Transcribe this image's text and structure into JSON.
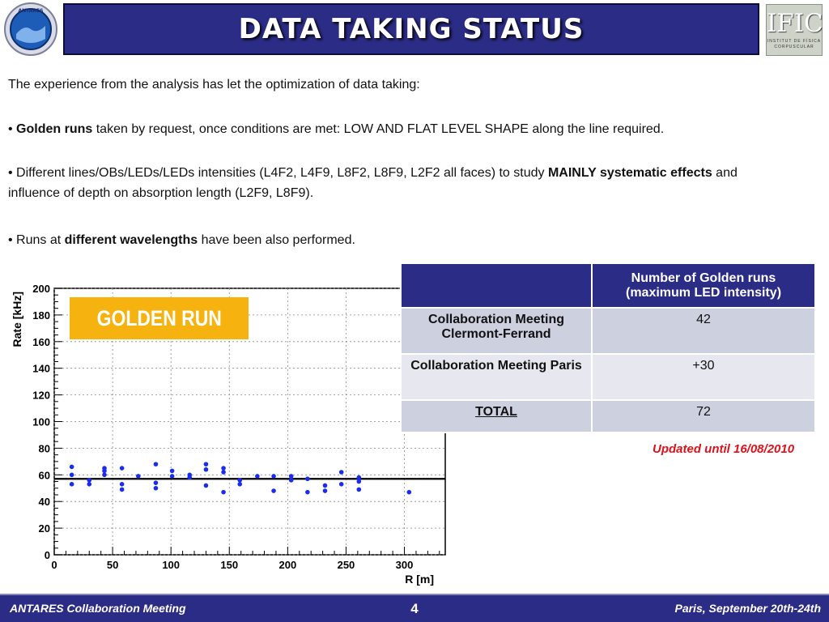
{
  "header": {
    "title": "DATA TAKING STATUS",
    "logo_left_text": "ANTARES",
    "logo_right_text": "IFIC",
    "logo_right_sub1": "INSTITUT DE FÍSICA",
    "logo_right_sub2": "CORPUSCULAR"
  },
  "body": {
    "intro": "The experience from the analysis has let the optimization of data taking:",
    "bullet1_bold": "Golden runs",
    "bullet1_rest": " taken by request, once conditions are met: LOW AND FLAT LEVEL SHAPE along the line required.",
    "bullet2_pre": "• Different lines/OBs/LEDs/LEDs intensities (L4F2, L4F9, L8F2, L8F9, L2F2 all faces) to study ",
    "bullet2_bold": "MAINLY systematic effects",
    "bullet2_rest": " and influence of depth on absorption length (L2F9, L8F9).",
    "bullet3_pre": "• Runs at ",
    "bullet3_bold": "different wavelengths",
    "bullet3_rest": " have been also performed."
  },
  "badge": {
    "label": "GOLDEN RUN",
    "color": "#f6b20e"
  },
  "table": {
    "header": "Number of Golden runs (maximum LED intensity)",
    "rows": [
      {
        "label": "Collaboration Meeting Clermont-Ferrand",
        "value": "42"
      },
      {
        "label": "Collaboration Meeting Paris",
        "value": "+30"
      },
      {
        "label": "TOTAL",
        "value": "72"
      }
    ]
  },
  "updated": "Updated until 16/08/2010",
  "footer": {
    "left": "ANTARES Collaboration Meeting",
    "page": "4",
    "right": "Paris, September 20th-24th"
  },
  "chart_data": {
    "type": "scatter",
    "xlabel": "R [m]",
    "ylabel": "Rate [kHz]",
    "xlim": [
      0,
      335
    ],
    "ylim": [
      0,
      200
    ],
    "xticks": [
      0,
      50,
      100,
      150,
      200,
      250,
      300
    ],
    "yticks": [
      0,
      20,
      40,
      60,
      80,
      100,
      120,
      140,
      160,
      180,
      200
    ],
    "grid": true,
    "reference_line_y": 57,
    "marker_color": "#1a2cf0",
    "points": [
      [
        15,
        66
      ],
      [
        15,
        60
      ],
      [
        15,
        53
      ],
      [
        30,
        56
      ],
      [
        30,
        53
      ],
      [
        43,
        65
      ],
      [
        43,
        63
      ],
      [
        43,
        60
      ],
      [
        58,
        65
      ],
      [
        58,
        53
      ],
      [
        58,
        49
      ],
      [
        72,
        59
      ],
      [
        87,
        68
      ],
      [
        87,
        54
      ],
      [
        87,
        50
      ],
      [
        101,
        63
      ],
      [
        101,
        59
      ],
      [
        116,
        60
      ],
      [
        116,
        58
      ],
      [
        130,
        68
      ],
      [
        130,
        64
      ],
      [
        130,
        52
      ],
      [
        145,
        65
      ],
      [
        145,
        62
      ],
      [
        145,
        47
      ],
      [
        159,
        56
      ],
      [
        159,
        53
      ],
      [
        174,
        59
      ],
      [
        188,
        59
      ],
      [
        188,
        48
      ],
      [
        203,
        59
      ],
      [
        203,
        56
      ],
      [
        217,
        57
      ],
      [
        217,
        47
      ],
      [
        232,
        52
      ],
      [
        232,
        48
      ],
      [
        246,
        62
      ],
      [
        246,
        53
      ],
      [
        261,
        58
      ],
      [
        261,
        55
      ],
      [
        261,
        49
      ],
      [
        304,
        47
      ]
    ]
  }
}
